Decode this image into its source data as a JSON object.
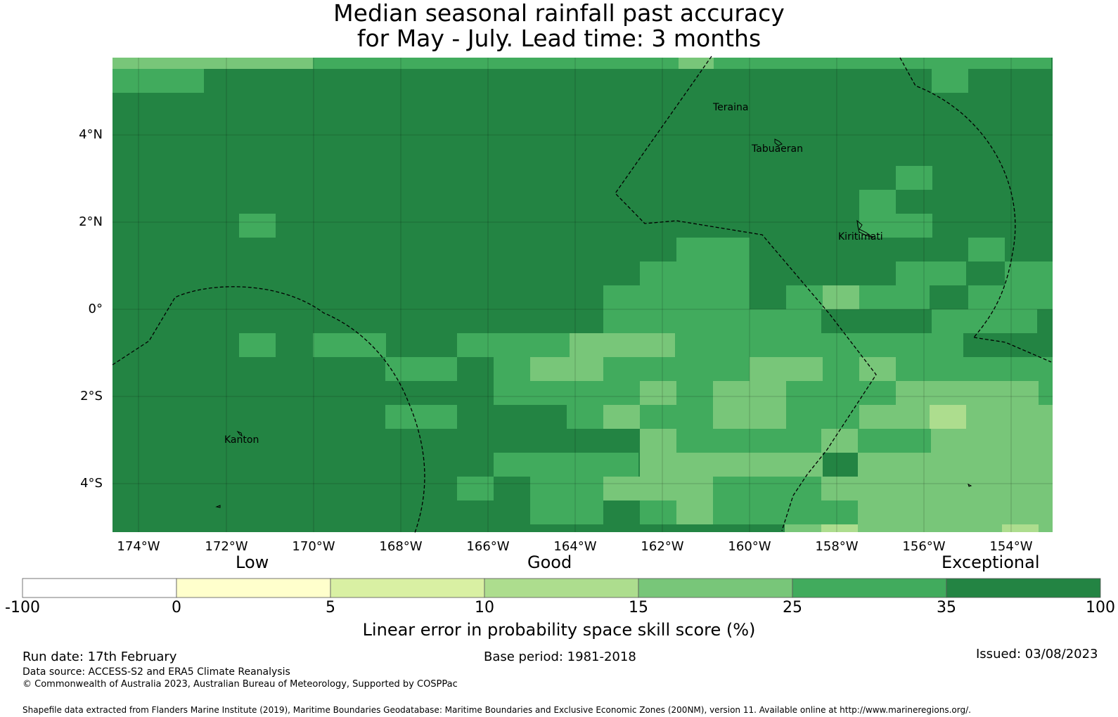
{
  "title": {
    "line1": "Median seasonal rainfall past accuracy",
    "line2": "for May - July. Lead time: 3 months"
  },
  "map": {
    "lon_ticks": [
      "174°W",
      "172°W",
      "170°W",
      "168°W",
      "166°W",
      "164°W",
      "162°W",
      "160°W",
      "158°W",
      "156°W",
      "154°W"
    ],
    "lat_ticks": [
      "4°N",
      "2°N",
      "0°",
      "2°S",
      "4°S"
    ],
    "places": {
      "teraina": "Teraina",
      "tabuaeran": "Tabuaeran",
      "kiritimati": "Kiritimati",
      "kanton": "Kanton"
    }
  },
  "colorbar": {
    "category_low": "Low",
    "category_good": "Good",
    "category_exceptional": "Exceptional",
    "ticks": [
      "-100",
      "0",
      "5",
      "10",
      "15",
      "25",
      "35",
      "100"
    ],
    "colors": [
      "#ffffff",
      "#ffffcc",
      "#d9f0a3",
      "#addd8e",
      "#78c679",
      "#41ab5d",
      "#238443"
    ],
    "label": "Linear error in probability space skill score (%)"
  },
  "footer": {
    "run_date": "Run date: 17th February",
    "base_period": "Base period: 1981-2018",
    "issued": "Issued: 03/08/2023",
    "data_source": "Data source: ACCESS-S2 and ERA5 Climate Reanalysis",
    "copyright": "© Commonwealth of Australia 2023, Australian Bureau of Meteorology, Supported by COSPPac",
    "shapefile": "Shapefile data extracted from Flanders Marine Institute (2019), Maritime Boundaries Geodatabase: Maritime Boundaries and Exclusive Economic Zones (200NM), version 11. Available online at http://www.marineregions.org/."
  }
}
